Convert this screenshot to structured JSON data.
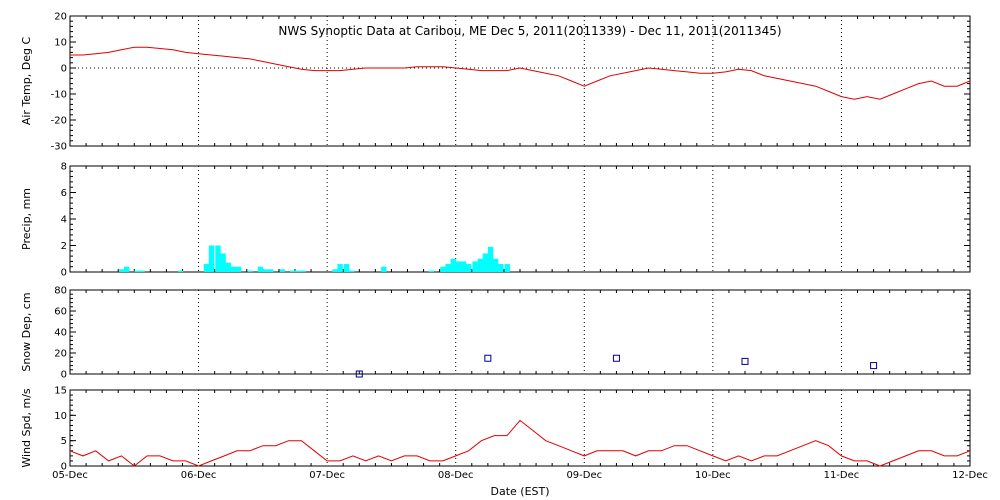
{
  "chart_data": [
    {
      "type": "line",
      "title": "NWS Synoptic Data at Caribou, ME   Dec  5, 2011(2011339) - Dec 11, 2011(2011345)",
      "ylabel": "Air Temp, Deg C",
      "ylim": [
        -30,
        20
      ],
      "yticks": [
        "20",
        "10",
        "0",
        "-10",
        "-20",
        "-30"
      ],
      "color": "#e00000",
      "x": [
        0,
        0.1,
        0.2,
        0.3,
        0.4,
        0.5,
        0.6,
        0.7,
        0.8,
        0.9,
        1.0,
        1.1,
        1.2,
        1.3,
        1.4,
        1.5,
        1.6,
        1.7,
        1.8,
        1.9,
        2.0,
        2.1,
        2.2,
        2.3,
        2.4,
        2.5,
        2.6,
        2.7,
        2.8,
        2.9,
        3.0,
        3.1,
        3.2,
        3.3,
        3.4,
        3.5,
        3.6,
        3.7,
        3.8,
        3.9,
        4.0,
        4.1,
        4.2,
        4.3,
        4.4,
        4.5,
        4.6,
        4.7,
        4.8,
        4.9,
        5.0,
        5.1,
        5.2,
        5.3,
        5.4,
        5.5,
        5.6,
        5.7,
        5.8,
        5.9,
        6.0,
        6.1,
        6.2,
        6.3,
        6.4,
        6.5,
        6.6,
        6.7,
        6.8,
        6.9,
        7.0
      ],
      "values": [
        5,
        5,
        5.5,
        6,
        7,
        8,
        8,
        7.5,
        7,
        6,
        5.5,
        5,
        4.5,
        4,
        3.5,
        2.5,
        1.5,
        0.5,
        -0.5,
        -1,
        -1,
        -1,
        -0.5,
        0,
        0,
        0,
        0,
        0.5,
        0.5,
        0.5,
        0,
        -0.5,
        -1,
        -1,
        -1,
        0,
        -1,
        -2,
        -3,
        -5,
        -7,
        -5,
        -3,
        -2,
        -1,
        0,
        -0.5,
        -1,
        -1.5,
        -2,
        -2,
        -1.5,
        -0.5,
        -1,
        -3,
        -4,
        -5,
        -6,
        -7,
        -9,
        -11,
        -12,
        -11,
        -12,
        -10,
        -8,
        -6,
        -5,
        -7,
        -7,
        -5
      ],
      "hline": 0
    },
    {
      "type": "bar",
      "ylabel": "Precip, mm",
      "ylim": [
        0,
        8
      ],
      "yticks": [
        "8",
        "6",
        "4",
        "2",
        "0"
      ],
      "color": "#00ffff",
      "bar_width": 0.0417,
      "x": [
        0.38,
        0.42,
        0.5,
        0.54,
        0.84,
        1.04,
        1.08,
        1.13,
        1.17,
        1.21,
        1.25,
        1.29,
        1.38,
        1.46,
        1.5,
        1.54,
        1.63,
        1.71,
        1.75,
        1.79,
        2.04,
        2.08,
        2.13,
        2.17,
        2.42,
        2.79,
        2.88,
        2.92,
        2.96,
        3.0,
        3.04,
        3.08,
        3.13,
        3.17,
        3.21,
        3.25,
        3.29,
        3.33,
        3.38
      ],
      "values": [
        0.2,
        0.4,
        0.1,
        0.1,
        0.1,
        0.6,
        2.0,
        2.0,
        1.4,
        0.7,
        0.4,
        0.4,
        0.1,
        0.4,
        0.2,
        0.2,
        0.2,
        0.1,
        0.1,
        0.1,
        0.2,
        0.6,
        0.6,
        0.1,
        0.4,
        0.1,
        0.4,
        0.6,
        1.0,
        0.8,
        0.8,
        0.6,
        0.8,
        1.0,
        1.4,
        1.9,
        1.0,
        0.6,
        0.6
      ]
    },
    {
      "type": "scatter",
      "ylabel": "Snow Dep, cm",
      "ylim": [
        0,
        80
      ],
      "yticks": [
        "80",
        "60",
        "40",
        "20",
        "0"
      ],
      "color": "#00008b",
      "x": [
        2.25,
        3.25,
        4.25,
        5.25,
        6.25
      ],
      "values": [
        0,
        15,
        15,
        12,
        8
      ]
    },
    {
      "type": "line",
      "ylabel": "Wind Spd, m/s",
      "xlabel": "Date (EST)",
      "ylim": [
        0,
        15
      ],
      "yticks": [
        "15",
        "10",
        "5",
        "0"
      ],
      "color": "#e00000",
      "x_tick_labels": [
        "05-Dec",
        "06-Dec",
        "07-Dec",
        "08-Dec",
        "09-Dec",
        "10-Dec",
        "11-Dec",
        "12-Dec"
      ],
      "x": [
        0,
        0.1,
        0.2,
        0.3,
        0.4,
        0.5,
        0.6,
        0.7,
        0.8,
        0.9,
        1.0,
        1.1,
        1.2,
        1.3,
        1.4,
        1.5,
        1.6,
        1.7,
        1.8,
        1.9,
        2.0,
        2.1,
        2.2,
        2.3,
        2.4,
        2.5,
        2.6,
        2.7,
        2.8,
        2.9,
        3.0,
        3.1,
        3.2,
        3.3,
        3.4,
        3.5,
        3.6,
        3.7,
        3.8,
        3.9,
        4.0,
        4.1,
        4.2,
        4.3,
        4.4,
        4.5,
        4.6,
        4.7,
        4.8,
        4.9,
        5.0,
        5.1,
        5.2,
        5.3,
        5.4,
        5.5,
        5.6,
        5.7,
        5.8,
        5.9,
        6.0,
        6.1,
        6.2,
        6.3,
        6.4,
        6.5,
        6.6,
        6.7,
        6.8,
        6.9,
        7.0
      ],
      "values": [
        3,
        2,
        3,
        1,
        2,
        0,
        2,
        2,
        1,
        1,
        0,
        1,
        2,
        3,
        3,
        4,
        4,
        5,
        5,
        3,
        1,
        1,
        2,
        1,
        2,
        1,
        2,
        2,
        1,
        1,
        2,
        3,
        5,
        6,
        6,
        9,
        7,
        5,
        4,
        3,
        2,
        3,
        3,
        3,
        2,
        3,
        3,
        4,
        4,
        3,
        2,
        1,
        2,
        1,
        2,
        2,
        3,
        4,
        5,
        4,
        2,
        1,
        1,
        0,
        1,
        2,
        3,
        3,
        2,
        2,
        3
      ]
    }
  ]
}
